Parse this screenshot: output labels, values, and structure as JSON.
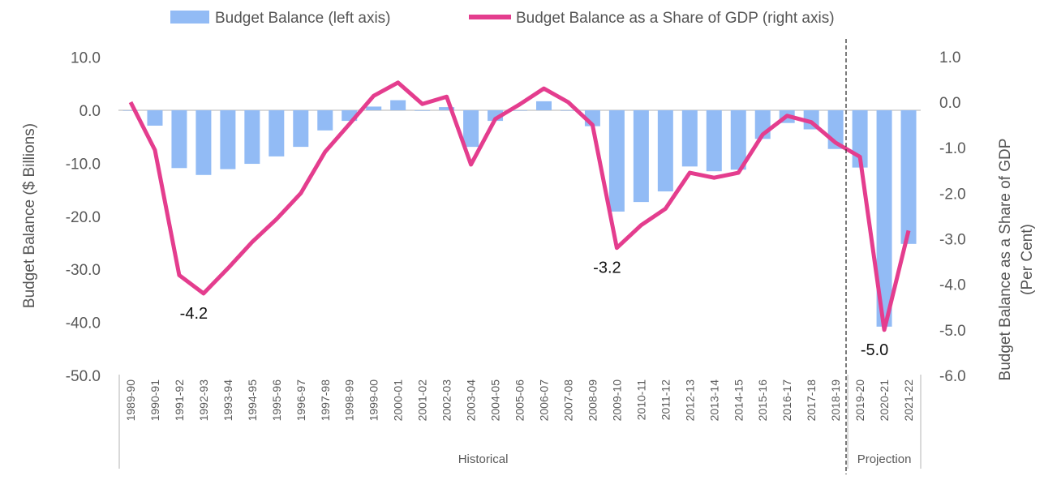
{
  "chart_data": {
    "type": "bar+line",
    "categories": [
      "1989-90",
      "1990-91",
      "1991-92",
      "1992-93",
      "1993-94",
      "1994-95",
      "1995-96",
      "1996-97",
      "1997-98",
      "1998-99",
      "1999-00",
      "2000-01",
      "2001-02",
      "2002-03",
      "2003-04",
      "2004-05",
      "2005-06",
      "2006-07",
      "2007-08",
      "2008-09",
      "2009-10",
      "2010-11",
      "2011-12",
      "2012-13",
      "2013-14",
      "2014-15",
      "2015-16",
      "2016-17",
      "2017-18",
      "2018-19",
      "2019-20",
      "2020-21",
      "2021-22"
    ],
    "series": [
      {
        "name": "Budget Balance (left axis)",
        "type": "bar",
        "axis": "left",
        "color": "#92BBF5",
        "values": [
          0.0,
          -2.9,
          -10.9,
          -12.2,
          -11.1,
          -10.1,
          -8.7,
          -6.9,
          -3.8,
          -2.0,
          0.7,
          1.9,
          -0.1,
          0.6,
          -6.9,
          -2.0,
          0.0,
          1.7,
          0.0,
          -3.0,
          -19.1,
          -17.3,
          -15.3,
          -10.6,
          -11.5,
          -11.2,
          -5.4,
          -2.4,
          -3.6,
          -7.3,
          -10.8,
          -40.8,
          -25.2
        ]
      },
      {
        "name": "Budget Balance as a Share of GDP (right axis)",
        "type": "line",
        "axis": "right",
        "color": "#E43D8E",
        "values": [
          0.0,
          -1.05,
          -3.8,
          -4.2,
          -3.65,
          -3.07,
          -2.57,
          -2.0,
          -1.09,
          -0.48,
          0.14,
          0.43,
          -0.04,
          0.12,
          -1.37,
          -0.37,
          -0.05,
          0.3,
          0.0,
          -0.5,
          -3.2,
          -2.7,
          -2.34,
          -1.55,
          -1.66,
          -1.55,
          -0.71,
          -0.3,
          -0.44,
          -0.89,
          -1.2,
          -5.0,
          -2.82
        ]
      }
    ],
    "annotations": [
      {
        "category": "1992-93",
        "text": "-4.2"
      },
      {
        "category": "2009-10",
        "text": "-3.2"
      },
      {
        "category": "2020-21",
        "text": "-5.0"
      }
    ],
    "groups": [
      {
        "label": "Historical",
        "from": "1989-90",
        "to": "2018-19"
      },
      {
        "label": "Projection",
        "from": "2019-20",
        "to": "2021-22"
      }
    ],
    "ylabel": "Budget Balance ($ Billions)",
    "ylabel_right_lines": [
      "Budget Balance as a Share of GDP",
      "(Per Cent)"
    ],
    "ylim": [
      -50,
      10
    ],
    "ylim_right": [
      -6,
      1
    ],
    "yticks": [
      "10.0",
      "0.0",
      "-10.0",
      "-20.0",
      "-30.0",
      "-40.0",
      "-50.0"
    ],
    "yticks_right": [
      "1.0",
      "0.0",
      "-1.0",
      "-2.0",
      "-3.0",
      "-4.0",
      "-5.0",
      "-6.0"
    ],
    "legend_position": "top",
    "grid": false
  }
}
